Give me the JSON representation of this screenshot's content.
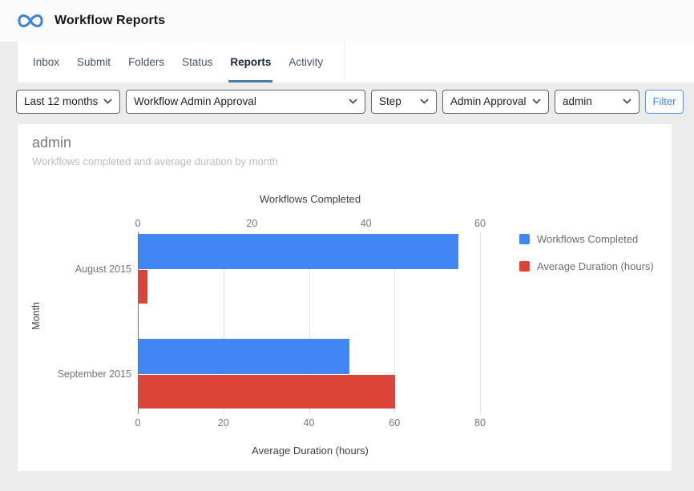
{
  "header": {
    "title": "Workflow Reports"
  },
  "nav": {
    "tabs": [
      {
        "label": "Inbox",
        "active": false
      },
      {
        "label": "Submit",
        "active": false
      },
      {
        "label": "Folders",
        "active": false
      },
      {
        "label": "Status",
        "active": false
      },
      {
        "label": "Reports",
        "active": true
      },
      {
        "label": "Activity",
        "active": false
      }
    ]
  },
  "filters": {
    "date_range": "Last 12 months",
    "workflow": "Workflow Admin Approval",
    "type": "Step",
    "step": "Admin Approval",
    "user": "admin",
    "filter_button": "Filter"
  },
  "report": {
    "title": "admin",
    "subtitle": "Workflows completed and average duration by month"
  },
  "colors": {
    "series_blue": "#4285f4",
    "series_red": "#db4437",
    "tab_underline": "#4e7ca0",
    "filter_button_blue": "#4285f4"
  },
  "chart_data": {
    "type": "bar",
    "orientation": "horizontal",
    "categories": [
      "August 2015",
      "September 2015"
    ],
    "series": [
      {
        "name": "Workflows Completed",
        "color": "#4285f4",
        "axis": "top",
        "values": [
          56,
          37
        ]
      },
      {
        "name": "Average Duration (hours)",
        "color": "#db4437",
        "axis": "bottom",
        "values": [
          2,
          60
        ]
      }
    ],
    "top_axis": {
      "title": "Workflows Completed",
      "ticks": [
        0,
        20,
        40,
        60
      ],
      "max": 60
    },
    "bottom_axis": {
      "title": "Average Duration (hours)",
      "ticks": [
        0,
        20,
        40,
        60,
        80
      ],
      "max": 80
    },
    "y_axis_title": "Month",
    "grid": true,
    "legend_position": "right"
  }
}
